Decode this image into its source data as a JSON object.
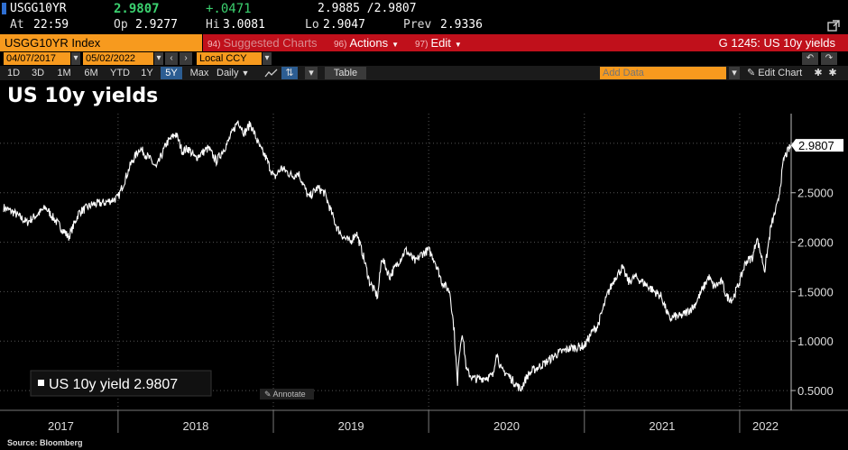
{
  "header": {
    "ticker": "USGG10YR",
    "last": "2.9807",
    "change": "+.0471",
    "bid_ask": "2.9885 /2.9807",
    "at_label": "At",
    "at_time": "22:59",
    "op_label": "Op",
    "op_value": "2.9277",
    "hi_label": "Hi",
    "hi_value": "3.0081",
    "lo_label": "Lo",
    "lo_value": "2.9047",
    "prev_label": "Prev",
    "prev_value": "2.9336"
  },
  "toolbar": {
    "security": "USGG10YR Index",
    "suggested_num": "94)",
    "suggested_label": "Suggested Charts",
    "actions_num": "96)",
    "actions_label": "Actions",
    "edit_num": "97)",
    "edit_label": "Edit",
    "chart_id": "G 1245: US 10y yields",
    "start_date": "04/07/2017",
    "end_date": "05/02/2022",
    "currency": "Local CCY",
    "ranges": [
      "1D",
      "3D",
      "1M",
      "6M",
      "YTD",
      "1Y",
      "5Y",
      "Max"
    ],
    "active_range": "5Y",
    "frequency": "Daily",
    "table_label": "Table",
    "add_data_placeholder": "Add Data",
    "edit_chart_label": "Edit Chart"
  },
  "colors": {
    "orange": "#f79a1e",
    "red": "#c0101b",
    "green": "#3bd16f",
    "line": "#ffffff"
  },
  "legend_label": "US 10y yield 2.9807",
  "annotate_label": "Annotate",
  "source": "Source: Bloomberg",
  "chart_data": {
    "type": "line",
    "title": "US 10y yields",
    "last_value_label": "2.9807",
    "yticks": [
      "0.5000",
      "1.0000",
      "1.5000",
      "2.0000",
      "2.5000"
    ],
    "ylim": [
      0.3,
      3.3
    ],
    "xticks": [
      "2017",
      "2018",
      "2019",
      "2020",
      "2021",
      "2022"
    ],
    "x_range": [
      "2017-04-07",
      "2022-05-02"
    ],
    "grid": true,
    "legend": "bottom-left",
    "series": [
      {
        "name": "US 10y yield",
        "x": [
          "2017-04-07",
          "2017-05-01",
          "2017-06-01",
          "2017-07-01",
          "2017-07-15",
          "2017-08-01",
          "2017-09-07",
          "2017-10-01",
          "2017-11-01",
          "2017-12-01",
          "2018-01-01",
          "2018-02-01",
          "2018-02-21",
          "2018-03-15",
          "2018-04-01",
          "2018-04-25",
          "2018-05-17",
          "2018-06-01",
          "2018-06-15",
          "2018-07-01",
          "2018-08-01",
          "2018-08-20",
          "2018-09-15",
          "2018-10-01",
          "2018-10-10",
          "2018-10-25",
          "2018-11-08",
          "2018-12-01",
          "2018-12-15",
          "2019-01-03",
          "2019-01-20",
          "2019-02-15",
          "2019-03-01",
          "2019-03-25",
          "2019-04-15",
          "2019-05-01",
          "2019-05-30",
          "2019-06-15",
          "2019-07-01",
          "2019-07-15",
          "2019-08-01",
          "2019-08-15",
          "2019-09-03",
          "2019-09-13",
          "2019-10-01",
          "2019-10-15",
          "2019-11-08",
          "2019-12-01",
          "2019-12-15",
          "2020-01-01",
          "2020-01-15",
          "2020-02-01",
          "2020-02-20",
          "2020-03-01",
          "2020-03-09",
          "2020-03-12",
          "2020-03-20",
          "2020-03-30",
          "2020-04-15",
          "2020-05-01",
          "2020-06-01",
          "2020-06-08",
          "2020-06-20",
          "2020-07-01",
          "2020-08-04",
          "2020-08-20",
          "2020-09-01",
          "2020-10-01",
          "2020-11-01",
          "2020-12-01",
          "2021-01-01",
          "2021-01-20",
          "2021-02-01",
          "2021-02-25",
          "2021-03-15",
          "2021-03-31",
          "2021-04-15",
          "2021-05-01",
          "2021-06-01",
          "2021-06-15",
          "2021-07-01",
          "2021-07-20",
          "2021-08-01",
          "2021-08-15",
          "2021-09-01",
          "2021-09-15",
          "2021-10-01",
          "2021-10-20",
          "2021-11-01",
          "2021-11-20",
          "2021-12-01",
          "2021-12-15",
          "2022-01-01",
          "2022-01-15",
          "2022-02-01",
          "2022-02-10",
          "2022-03-01",
          "2022-03-15",
          "2022-04-01",
          "2022-04-15",
          "2022-05-02"
        ],
        "values": [
          2.35,
          2.3,
          2.2,
          2.3,
          2.35,
          2.25,
          2.05,
          2.3,
          2.38,
          2.4,
          2.45,
          2.8,
          2.95,
          2.85,
          2.75,
          3.0,
          3.1,
          2.92,
          2.95,
          2.85,
          2.95,
          2.82,
          3.0,
          3.15,
          3.23,
          3.1,
          3.2,
          2.95,
          2.85,
          2.65,
          2.75,
          2.67,
          2.7,
          2.45,
          2.55,
          2.5,
          2.15,
          2.05,
          2.0,
          2.1,
          1.85,
          1.6,
          1.45,
          1.85,
          1.65,
          1.75,
          1.92,
          1.8,
          1.88,
          1.92,
          1.82,
          1.6,
          1.5,
          1.1,
          0.54,
          0.85,
          1.1,
          0.7,
          0.62,
          0.62,
          0.65,
          0.9,
          0.7,
          0.68,
          0.51,
          0.65,
          0.7,
          0.78,
          0.88,
          0.93,
          0.95,
          1.1,
          1.15,
          1.48,
          1.65,
          1.74,
          1.6,
          1.65,
          1.55,
          1.5,
          1.45,
          1.22,
          1.25,
          1.25,
          1.3,
          1.35,
          1.48,
          1.65,
          1.55,
          1.6,
          1.45,
          1.42,
          1.6,
          1.8,
          1.85,
          2.05,
          1.72,
          2.15,
          2.4,
          2.85,
          2.98
        ]
      }
    ]
  }
}
